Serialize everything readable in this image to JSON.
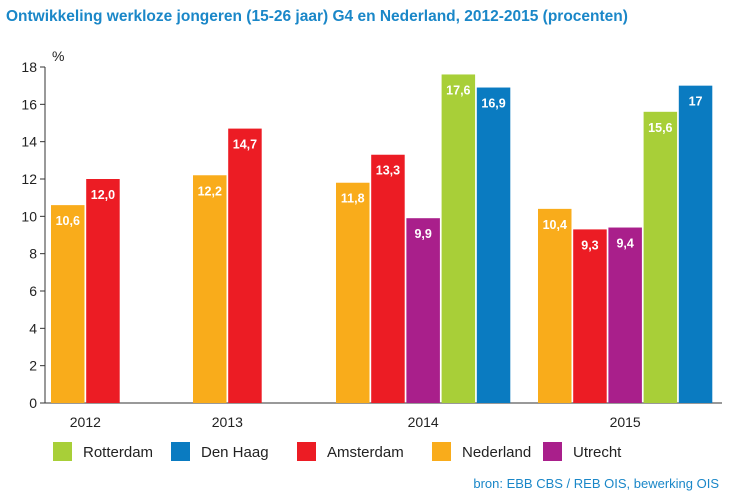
{
  "chart_data": {
    "type": "bar",
    "title": "Ontwikkeling werkloze jongeren (15-26 jaar) G4 en Nederland, 2012-2015 (procenten)",
    "ylabel": "%",
    "xlabel": "",
    "ylim": [
      0,
      18
    ],
    "yticks": [
      0,
      2,
      4,
      6,
      8,
      10,
      12,
      14,
      16,
      18
    ],
    "yticks_text": [
      "0",
      "2",
      "4",
      "6",
      "8",
      "10",
      "12",
      "14",
      "16",
      "18"
    ],
    "grid": false,
    "legend_position": "bottom",
    "categories": [
      "2012",
      "2013",
      "2014",
      "2015"
    ],
    "groups": [
      {
        "category": "2012",
        "bars": [
          {
            "series": "Nederland",
            "value": 10.6,
            "label": "10,6"
          },
          {
            "series": "Amsterdam",
            "value": 12.0,
            "label": "12,0"
          }
        ]
      },
      {
        "category": "2013",
        "bars": [
          {
            "series": "Nederland",
            "value": 12.2,
            "label": "12,2"
          },
          {
            "series": "Amsterdam",
            "value": 14.7,
            "label": "14,7"
          }
        ]
      },
      {
        "category": "2014",
        "bars": [
          {
            "series": "Nederland",
            "value": 11.8,
            "label": "11,8"
          },
          {
            "series": "Amsterdam",
            "value": 13.3,
            "label": "13,3"
          },
          {
            "series": "Utrecht",
            "value": 9.9,
            "label": "9,9"
          },
          {
            "series": "Rotterdam",
            "value": 17.6,
            "label": "17,6"
          },
          {
            "series": "Den Haag",
            "value": 16.9,
            "label": "16,9"
          }
        ]
      },
      {
        "category": "2015",
        "bars": [
          {
            "series": "Nederland",
            "value": 10.4,
            "label": "10,4"
          },
          {
            "series": "Amsterdam",
            "value": 9.3,
            "label": "9,3"
          },
          {
            "series": "Utrecht",
            "value": 9.4,
            "label": "9,4"
          },
          {
            "series": "Rotterdam",
            "value": 15.6,
            "label": "15,6"
          },
          {
            "series": "Den Haag",
            "value": 17.0,
            "label": "17"
          }
        ]
      }
    ],
    "legend": [
      {
        "name": "Rotterdam",
        "color": "#a8cf38"
      },
      {
        "name": "Den Haag",
        "color": "#0a7bc1"
      },
      {
        "name": "Amsterdam",
        "color": "#ec1c24"
      },
      {
        "name": "Nederland",
        "color": "#f9ac1b"
      },
      {
        "name": "Utrecht",
        "color": "#a91f8b"
      }
    ],
    "colors": {
      "Nederland": "#f9ac1b",
      "Amsterdam": "#ec1c24",
      "Utrecht": "#a91f8b",
      "Rotterdam": "#a8cf38",
      "Den Haag": "#0a7bc1"
    },
    "source": "bron: EBB CBS / REB OIS, bewerking OIS"
  }
}
